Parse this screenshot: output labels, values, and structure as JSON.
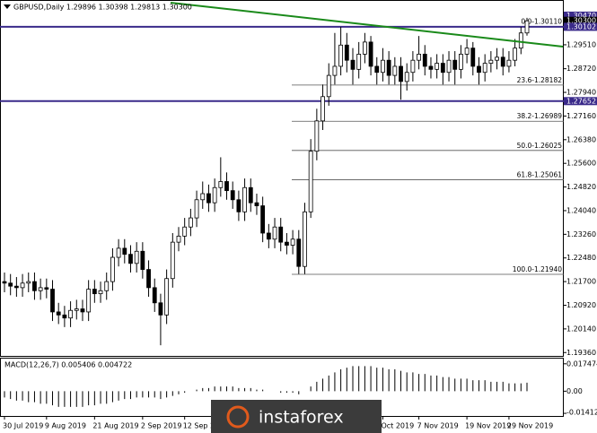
{
  "chart_data": {
    "type": "candlestick",
    "title": "GBPUSD,Daily  1.29896 1.30398 1.29813 1.30300",
    "categories": [
      "30 Jul 2019",
      null,
      null,
      null,
      null,
      null,
      null,
      "9 Aug 2019",
      null,
      null,
      null,
      null,
      null,
      null,
      null,
      "21 Aug 2019",
      null,
      null,
      null,
      null,
      null,
      null,
      null,
      "2 Sep 2019",
      null,
      null,
      null,
      null,
      null,
      null,
      "12 Sep 2019",
      null,
      null,
      null,
      null,
      null,
      null,
      null,
      null,
      null,
      null,
      null,
      null,
      null,
      null,
      null,
      null,
      null,
      null,
      null,
      null,
      null,
      null,
      null,
      null,
      null,
      null,
      null,
      null,
      null,
      null,
      null,
      null,
      "Oct 2019",
      null,
      null,
      null,
      null,
      null,
      "7 Nov 2019",
      null,
      null,
      null,
      null,
      null,
      null,
      null,
      "19 Nov 2019",
      null,
      null,
      null,
      null,
      null,
      null,
      "29 Nov 2019",
      null,
      null,
      null
    ],
    "candles": [
      [
        1.217,
        1.22,
        1.2135,
        1.2165
      ],
      [
        1.2165,
        1.2195,
        1.2125,
        1.2155
      ],
      [
        1.2155,
        1.2185,
        1.212,
        1.215
      ],
      [
        1.215,
        1.2195,
        1.212,
        1.2165
      ],
      [
        1.2165,
        1.22,
        1.2135,
        1.217
      ],
      [
        1.217,
        1.22,
        1.211,
        1.214
      ],
      [
        1.214,
        1.218,
        1.211,
        1.215
      ],
      [
        1.215,
        1.218,
        1.2115,
        1.2145
      ],
      [
        1.2145,
        1.2175,
        1.204,
        1.207
      ],
      [
        1.207,
        1.21,
        1.203,
        1.206
      ],
      [
        1.206,
        1.209,
        1.202,
        1.205
      ],
      [
        1.205,
        1.2105,
        1.202,
        1.2075
      ],
      [
        1.2075,
        1.211,
        1.2045,
        1.208
      ],
      [
        1.208,
        1.211,
        1.204,
        1.207
      ],
      [
        1.207,
        1.2175,
        1.204,
        1.2145
      ],
      [
        1.2145,
        1.2175,
        1.21,
        1.213
      ],
      [
        1.213,
        1.217,
        1.21,
        1.214
      ],
      [
        1.214,
        1.22,
        1.211,
        1.217
      ],
      [
        1.217,
        1.228,
        1.214,
        1.225
      ],
      [
        1.225,
        1.231,
        1.222,
        1.228
      ],
      [
        1.228,
        1.231,
        1.223,
        1.226
      ],
      [
        1.226,
        1.229,
        1.22,
        1.223
      ],
      [
        1.223,
        1.23,
        1.22,
        1.227
      ],
      [
        1.227,
        1.23,
        1.218,
        1.221
      ],
      [
        1.221,
        1.224,
        1.212,
        1.215
      ],
      [
        1.215,
        1.218,
        1.207,
        1.21
      ],
      [
        1.21,
        1.213,
        1.196,
        1.206
      ],
      [
        1.206,
        1.221,
        1.203,
        1.218
      ],
      [
        1.218,
        1.233,
        1.215,
        1.23
      ],
      [
        1.23,
        1.235,
        1.227,
        1.232
      ],
      [
        1.232,
        1.238,
        1.229,
        1.235
      ],
      [
        1.235,
        1.241,
        1.232,
        1.238
      ],
      [
        1.238,
        1.247,
        1.235,
        1.244
      ],
      [
        1.244,
        1.25,
        1.241,
        1.246
      ],
      [
        1.246,
        1.249,
        1.24,
        1.243
      ],
      [
        1.243,
        1.251,
        1.24,
        1.248
      ],
      [
        1.248,
        1.258,
        1.245,
        1.25
      ],
      [
        1.25,
        1.253,
        1.244,
        1.247
      ],
      [
        1.247,
        1.25,
        1.241,
        1.244
      ],
      [
        1.244,
        1.247,
        1.237,
        1.24
      ],
      [
        1.24,
        1.251,
        1.237,
        1.248
      ],
      [
        1.248,
        1.251,
        1.24,
        1.243
      ],
      [
        1.243,
        1.246,
        1.239,
        1.242
      ],
      [
        1.242,
        1.245,
        1.23,
        1.233
      ],
      [
        1.233,
        1.236,
        1.228,
        1.231
      ],
      [
        1.231,
        1.238,
        1.228,
        1.235
      ],
      [
        1.235,
        1.238,
        1.227,
        1.23
      ],
      [
        1.23,
        1.233,
        1.226,
        1.229
      ],
      [
        1.229,
        1.234,
        1.226,
        1.231
      ],
      [
        1.231,
        1.234,
        1.2195,
        1.222
      ],
      [
        1.222,
        1.243,
        1.2195,
        1.24
      ],
      [
        1.24,
        1.264,
        1.238,
        1.26
      ],
      [
        1.26,
        1.274,
        1.257,
        1.27
      ],
      [
        1.27,
        1.282,
        1.267,
        1.278
      ],
      [
        1.278,
        1.289,
        1.275,
        1.285
      ],
      [
        1.285,
        1.299,
        1.282,
        1.288
      ],
      [
        1.288,
        1.301,
        1.285,
        1.295
      ],
      [
        1.295,
        1.299,
        1.286,
        1.29
      ],
      [
        1.29,
        1.294,
        1.282,
        1.287
      ],
      [
        1.287,
        1.296,
        1.284,
        1.292
      ],
      [
        1.292,
        1.299,
        1.289,
        1.296
      ],
      [
        1.296,
        1.298,
        1.285,
        1.288
      ],
      [
        1.288,
        1.291,
        1.282,
        1.286
      ],
      [
        1.286,
        1.294,
        1.283,
        1.29
      ],
      [
        1.29,
        1.293,
        1.282,
        1.285
      ],
      [
        1.285,
        1.291,
        1.282,
        1.288
      ],
      [
        1.288,
        1.291,
        1.277,
        1.283
      ],
      [
        1.283,
        1.289,
        1.28,
        1.286
      ],
      [
        1.286,
        1.293,
        1.283,
        1.29
      ],
      [
        1.29,
        1.298,
        1.287,
        1.292
      ],
      [
        1.292,
        1.295,
        1.285,
        1.288
      ],
      [
        1.288,
        1.291,
        1.284,
        1.287
      ],
      [
        1.287,
        1.292,
        1.284,
        1.289
      ],
      [
        1.289,
        1.292,
        1.282,
        1.286
      ],
      [
        1.286,
        1.293,
        1.283,
        1.29
      ],
      [
        1.29,
        1.293,
        1.282,
        1.287
      ],
      [
        1.287,
        1.295,
        1.284,
        1.292
      ],
      [
        1.292,
        1.297,
        1.289,
        1.294
      ],
      [
        1.294,
        1.296,
        1.285,
        1.288
      ],
      [
        1.288,
        1.291,
        1.282,
        1.286
      ],
      [
        1.286,
        1.292,
        1.283,
        1.289
      ],
      [
        1.289,
        1.293,
        1.286,
        1.29
      ],
      [
        1.29,
        1.294,
        1.287,
        1.291
      ],
      [
        1.291,
        1.294,
        1.285,
        1.288
      ],
      [
        1.288,
        1.293,
        1.286,
        1.29
      ],
      [
        1.29,
        1.297,
        1.288,
        1.294
      ],
      [
        1.294,
        1.301,
        1.292,
        1.299
      ],
      [
        1.299,
        1.304,
        1.2981,
        1.303
      ]
    ],
    "ylim": [
      1.1922,
      1.3075
    ],
    "yticks": [
      {
        "value": 1.1936,
        "label": "1.19360"
      },
      {
        "value": 1.2014,
        "label": "1.20140"
      },
      {
        "value": 1.2092,
        "label": "1.20920"
      },
      {
        "value": 1.217,
        "label": "1.21700"
      },
      {
        "value": 1.2248,
        "label": "1.22480"
      },
      {
        "value": 1.2326,
        "label": "1.23260"
      },
      {
        "value": 1.2404,
        "label": "1.24040"
      },
      {
        "value": 1.2482,
        "label": "1.24820"
      },
      {
        "value": 1.256,
        "label": "1.25600"
      },
      {
        "value": 1.2638,
        "label": "1.26380"
      },
      {
        "value": 1.2716,
        "label": "1.27160"
      },
      {
        "value": 1.2794,
        "label": "1.27940"
      },
      {
        "value": 1.2872,
        "label": "1.28720"
      },
      {
        "value": 1.2951,
        "label": "1.29510"
      }
    ],
    "price_labels": [
      {
        "value": 1.3047,
        "label": "1.30470",
        "color": "#3a2a8a"
      },
      {
        "value": 1.303,
        "label": "1.30300",
        "color": "#000000"
      },
      {
        "value": 1.30102,
        "label": "1.30102",
        "color": "#3a2a8a"
      },
      {
        "value": 1.27652,
        "label": "1.27652",
        "color": "#3a2a8a"
      }
    ],
    "levels": [
      {
        "value": 1.30102,
        "color": "#3a2a8a"
      },
      {
        "value": 1.27652,
        "color": "#3a2a8a"
      }
    ],
    "fibonacci": [
      {
        "value": 1.3011,
        "label": "0.0-1.30110"
      },
      {
        "value": 1.28182,
        "label": "23.6-1.28182"
      },
      {
        "value": 1.26989,
        "label": "38.2-1.26989"
      },
      {
        "value": 1.26025,
        "label": "50.0-1.26025"
      },
      {
        "value": 1.25061,
        "label": "61.8-1.25061"
      },
      {
        "value": 1.2194,
        "label": "100.0-1.21940"
      }
    ],
    "macd": {
      "title": "MACD(12,26,7) 0.005406 0.004722",
      "values": [
        -0.004,
        -0.005,
        -0.006,
        -0.006,
        -0.007,
        -0.007,
        -0.008,
        -0.008,
        -0.009,
        -0.01,
        -0.01,
        -0.01,
        -0.01,
        -0.01,
        -0.009,
        -0.009,
        -0.008,
        -0.008,
        -0.007,
        -0.006,
        -0.005,
        -0.005,
        -0.004,
        -0.004,
        -0.004,
        -0.004,
        -0.005,
        -0.004,
        -0.003,
        -0.002,
        -0.001,
        0.0,
        0.001,
        0.002,
        0.002,
        0.003,
        0.003,
        0.003,
        0.003,
        0.002,
        0.002,
        0.002,
        0.001,
        0.001,
        0.0,
        0.0,
        -0.001,
        -0.001,
        -0.001,
        -0.002,
        0.0,
        0.003,
        0.006,
        0.008,
        0.01,
        0.012,
        0.014,
        0.015,
        0.016,
        0.016,
        0.016,
        0.016,
        0.015,
        0.015,
        0.014,
        0.014,
        0.013,
        0.012,
        0.012,
        0.011,
        0.011,
        0.01,
        0.01,
        0.009,
        0.009,
        0.008,
        0.008,
        0.008,
        0.007,
        0.007,
        0.007,
        0.006,
        0.006,
        0.006,
        0.005,
        0.005,
        0.005,
        0.0054
      ],
      "ylim": [
        -0.0158,
        0.0208
      ],
      "yticks": [
        {
          "value": 0.017474,
          "label": "0.017474"
        },
        {
          "value": 0,
          "label": "0.00"
        },
        {
          "value": -0.014128,
          "label": "-0.014128"
        }
      ]
    },
    "watermark": "instaforex"
  }
}
